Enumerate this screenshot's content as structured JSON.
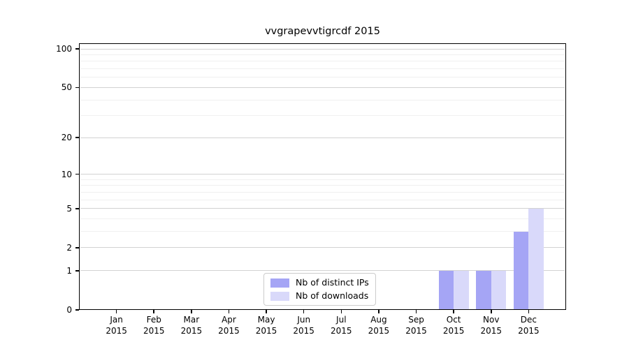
{
  "chart_data": {
    "type": "bar",
    "title": "vvgrapevvtigrcdf 2015",
    "categories": [
      "Jan",
      "Feb",
      "Mar",
      "Apr",
      "May",
      "Jun",
      "Jul",
      "Aug",
      "Sep",
      "Oct",
      "Nov",
      "Dec"
    ],
    "year_label": "2015",
    "series": [
      {
        "name": "Nb of distinct IPs",
        "color": "#a5a5f5",
        "values": [
          0,
          0,
          0,
          0,
          0,
          0,
          0,
          0,
          0,
          1,
          1,
          3
        ]
      },
      {
        "name": "Nb of downloads",
        "color": "#d9d9fa",
        "values": [
          0,
          0,
          0,
          0,
          0,
          0,
          0,
          0,
          0,
          1,
          1,
          5
        ]
      }
    ],
    "y_axis": {
      "scale": "log1p",
      "ticks": [
        0,
        1,
        2,
        5,
        10,
        20,
        50,
        100
      ],
      "ylim": [
        0,
        110
      ],
      "grid": true
    },
    "x_axis": {
      "xlabel": "",
      "tick_style": "month-over-year"
    },
    "legend": {
      "position": "lower-center-inside"
    },
    "colors": {
      "major_grid": "#d2d2d2",
      "minor_grid": "#f0f0f0",
      "spine": "#000000",
      "background": "#ffffff"
    }
  }
}
